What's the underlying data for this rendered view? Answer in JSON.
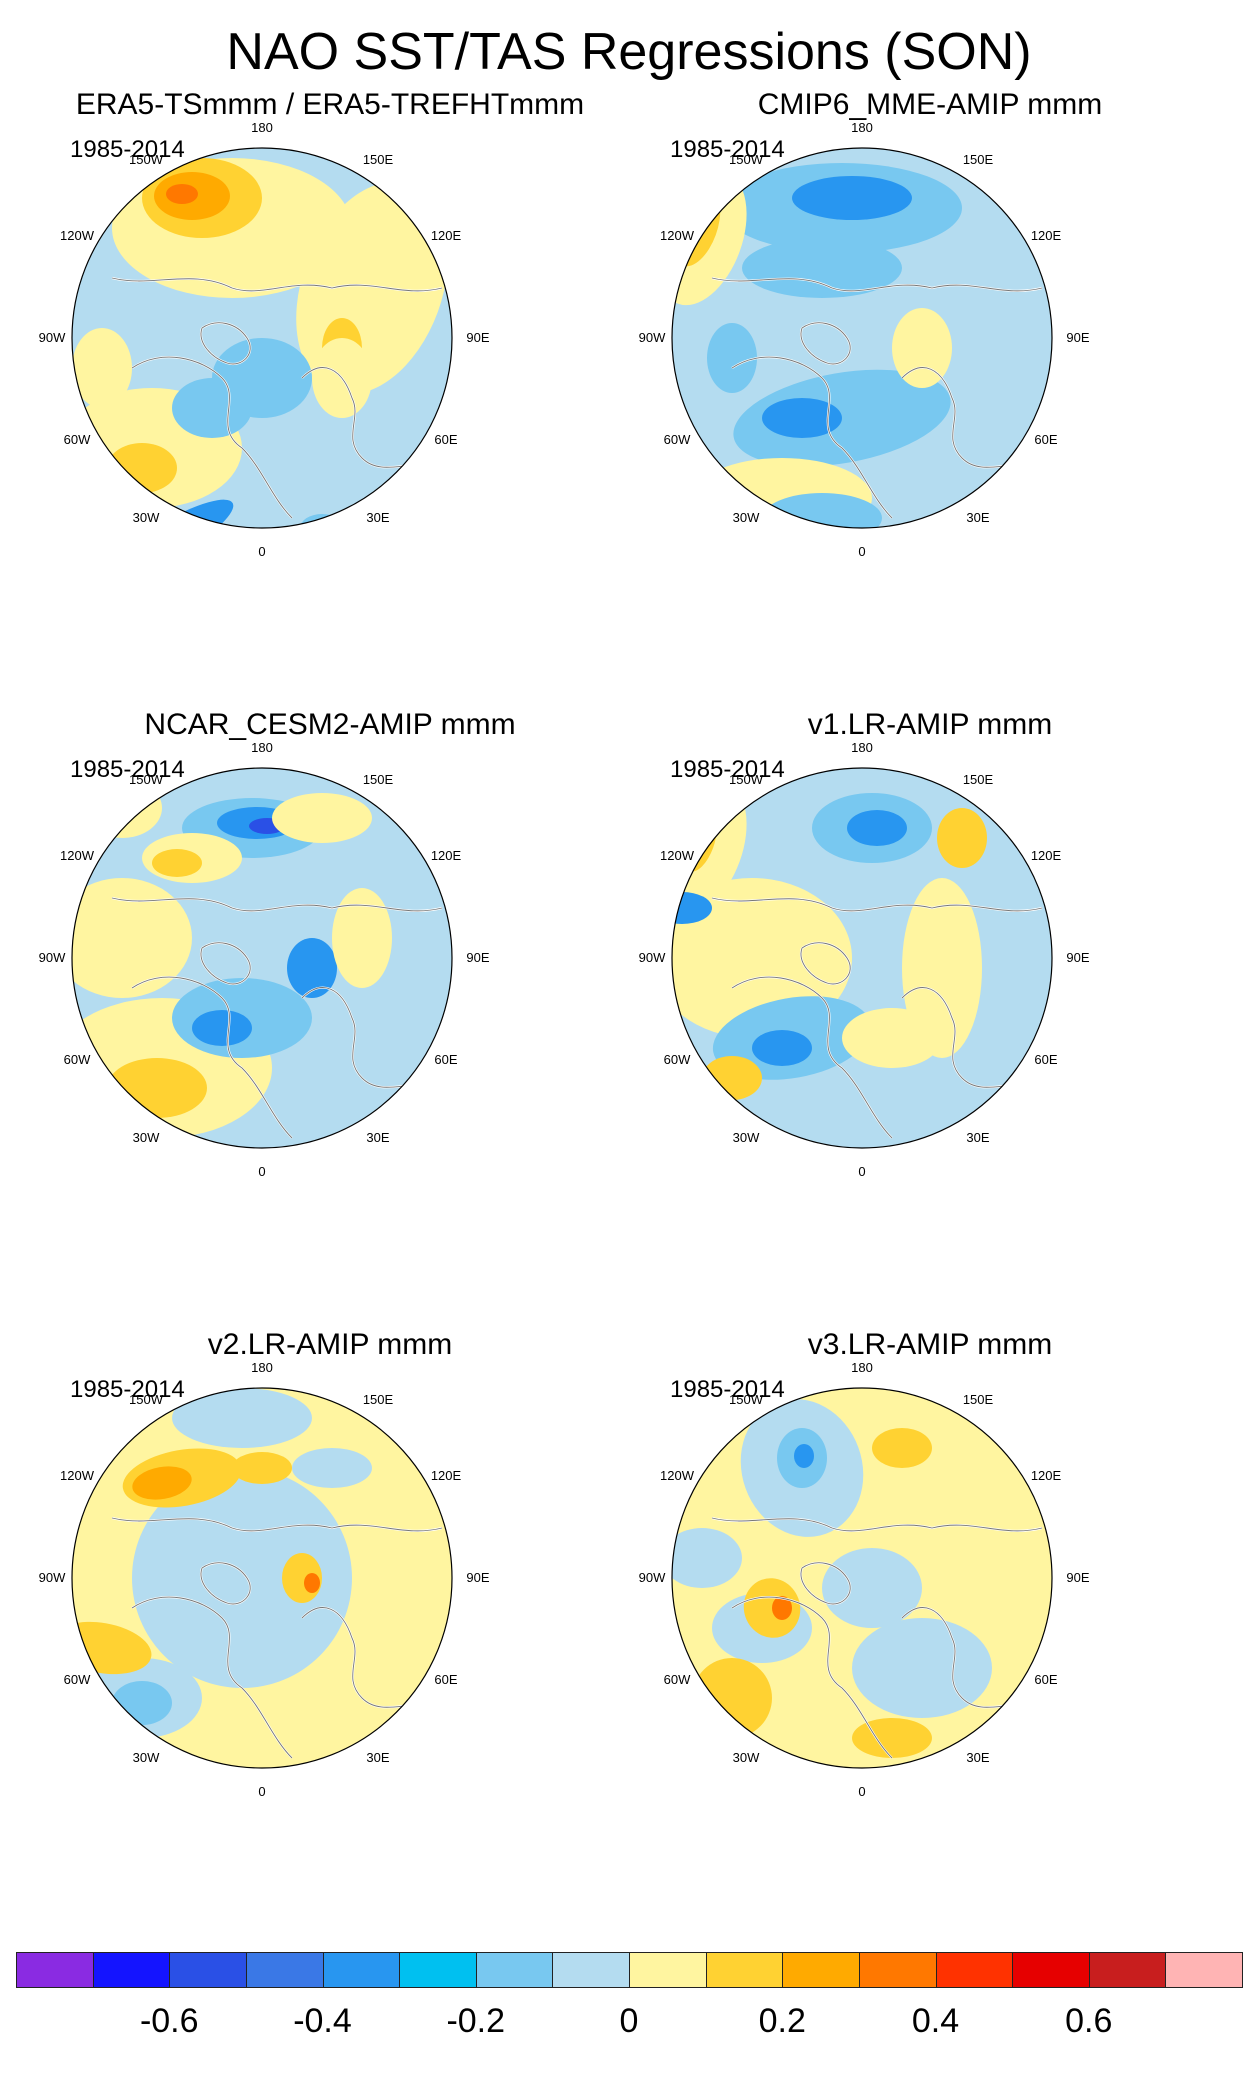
{
  "title": "NAO SST/TAS Regressions (SON)",
  "panels": [
    {
      "title": "ERA5-TSmmm / ERA5-TREFHTmmm",
      "years": "1985-2014",
      "pattern": "era5"
    },
    {
      "title": "CMIP6_MME-AMIP  mmm",
      "years": "1985-2014",
      "pattern": "cmip6"
    },
    {
      "title": "NCAR_CESM2-AMIP  mmm",
      "years": "1985-2014",
      "pattern": "cesm2"
    },
    {
      "title": "v1.LR-AMIP  mmm",
      "years": "1985-2014",
      "pattern": "v1"
    },
    {
      "title": "v2.LR-AMIP  mmm",
      "years": "1985-2014",
      "pattern": "v2"
    },
    {
      "title": "v3.LR-AMIP  mmm",
      "years": "1985-2014",
      "pattern": "v3"
    }
  ],
  "lon_labels": {
    "top": "180",
    "bottom": "0",
    "left": "90W",
    "right": "90E",
    "upper_left_1": "150W",
    "upper_left_2": "120W",
    "lower_left_1": "60W",
    "lower_left_2": "30W",
    "upper_right_1": "150E",
    "upper_right_2": "120E",
    "lower_right_1": "60E",
    "lower_right_2": "30E"
  },
  "colorbar": {
    "colors": [
      "#8a2be2",
      "#1414ff",
      "#2a50e6",
      "#3a78e6",
      "#2896f0",
      "#00c0f0",
      "#78c8f0",
      "#b4dcf0",
      "#fff5a0",
      "#ffd232",
      "#ffaa00",
      "#ff7800",
      "#ff3200",
      "#e60000",
      "#c81e1e",
      "#ffb4b4"
    ],
    "tick_labels": [
      "-0.6",
      "-0.4",
      "-0.2",
      "0",
      "0.2",
      "0.4",
      "0.6"
    ]
  },
  "palette": {
    "light_blue": "#b4dcf0",
    "pale_yellow": "#fff5a0",
    "blue": "#78c8f0",
    "mid_blue": "#2896f0",
    "deep_blue": "#3a78e6",
    "dark_blue": "#2a50e6",
    "gold": "#ffd232",
    "orange": "#ffaa00",
    "dark_orange": "#ff7800",
    "red": "#ff3200"
  }
}
